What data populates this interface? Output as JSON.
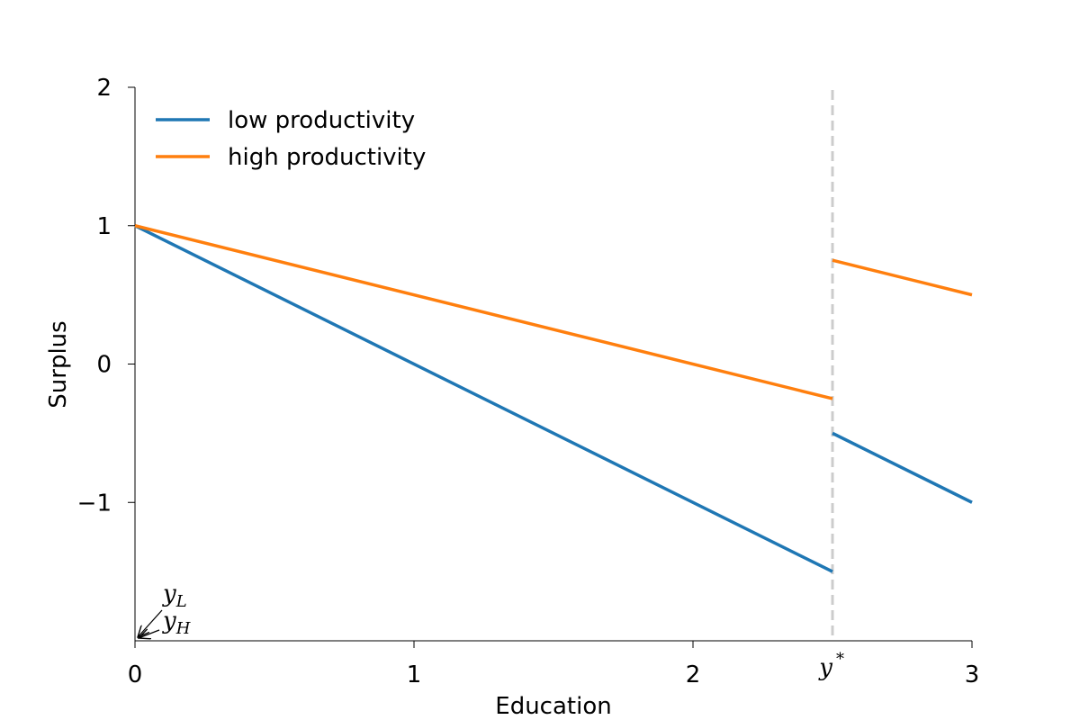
{
  "chart_data": {
    "type": "line",
    "xlabel": "Education",
    "ylabel": "Surplus",
    "xlim": [
      0,
      3
    ],
    "ylim": [
      -2,
      2
    ],
    "x_ticks": [
      0,
      1,
      2,
      3
    ],
    "x_tick_labels": [
      "0",
      "1",
      "2",
      "3"
    ],
    "y_ticks": [
      -1,
      0,
      1,
      2
    ],
    "y_tick_labels": [
      "−1",
      "0",
      "1",
      "2"
    ],
    "grid": false,
    "legend_position": "top-left",
    "threshold": {
      "x": 2.5,
      "label": "y*",
      "style": "dashed",
      "color": "#cccccc"
    },
    "series": [
      {
        "name": "low productivity",
        "color": "#1f77b4",
        "segments": [
          {
            "x": [
              0,
              2.5
            ],
            "y": [
              1,
              -1.5
            ]
          },
          {
            "x": [
              2.5,
              3
            ],
            "y": [
              -0.5,
              -1
            ]
          }
        ]
      },
      {
        "name": "high productivity",
        "color": "#ff7f0e",
        "segments": [
          {
            "x": [
              0,
              2.5
            ],
            "y": [
              1,
              -0.25
            ]
          },
          {
            "x": [
              2.5,
              3
            ],
            "y": [
              0.75,
              0.5
            ]
          }
        ]
      }
    ],
    "annotations": [
      {
        "base": "y",
        "sub": "L"
      },
      {
        "base": "y",
        "sub": "H"
      }
    ]
  }
}
